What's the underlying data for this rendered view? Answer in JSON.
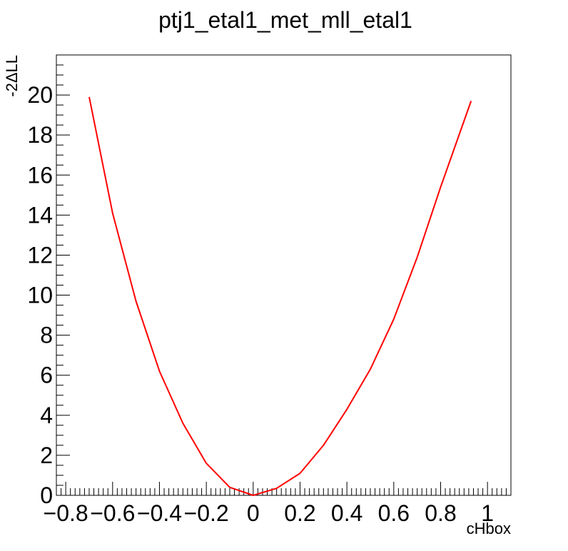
{
  "chart_data": {
    "type": "line",
    "title": "ptj1_etal1_met_mll_etal1",
    "xlabel": "cHbox",
    "ylabel": "-2ΔLL",
    "xlim": [
      -0.84,
      1.1
    ],
    "ylim": [
      0,
      22
    ],
    "x_ticks": [
      -0.8,
      -0.6,
      -0.4,
      -0.2,
      0,
      0.2,
      0.4,
      0.6,
      0.8,
      1
    ],
    "x_tick_labels": [
      "−0.8",
      "−0.6",
      "−0.4",
      "−0.2",
      "0",
      "0.2",
      "0.4",
      "0.6",
      "0.8",
      "1"
    ],
    "y_ticks": [
      0,
      2,
      4,
      6,
      8,
      10,
      12,
      14,
      16,
      18,
      20
    ],
    "y_tick_labels": [
      "0",
      "2",
      "4",
      "6",
      "8",
      "10",
      "12",
      "14",
      "16",
      "18",
      "20"
    ],
    "grid": false,
    "legend": "none",
    "series": [
      {
        "color": "#ff0000",
        "x": [
          -0.7,
          -0.6,
          -0.5,
          -0.4,
          -0.3,
          -0.2,
          -0.1,
          0.0,
          0.1,
          0.2,
          0.3,
          0.4,
          0.5,
          0.6,
          0.7,
          0.8,
          0.93
        ],
        "y": [
          19.9,
          14.1,
          9.7,
          6.2,
          3.6,
          1.6,
          0.4,
          0.0,
          0.35,
          1.1,
          2.5,
          4.3,
          6.3,
          8.8,
          11.9,
          15.4,
          19.7
        ]
      }
    ]
  }
}
